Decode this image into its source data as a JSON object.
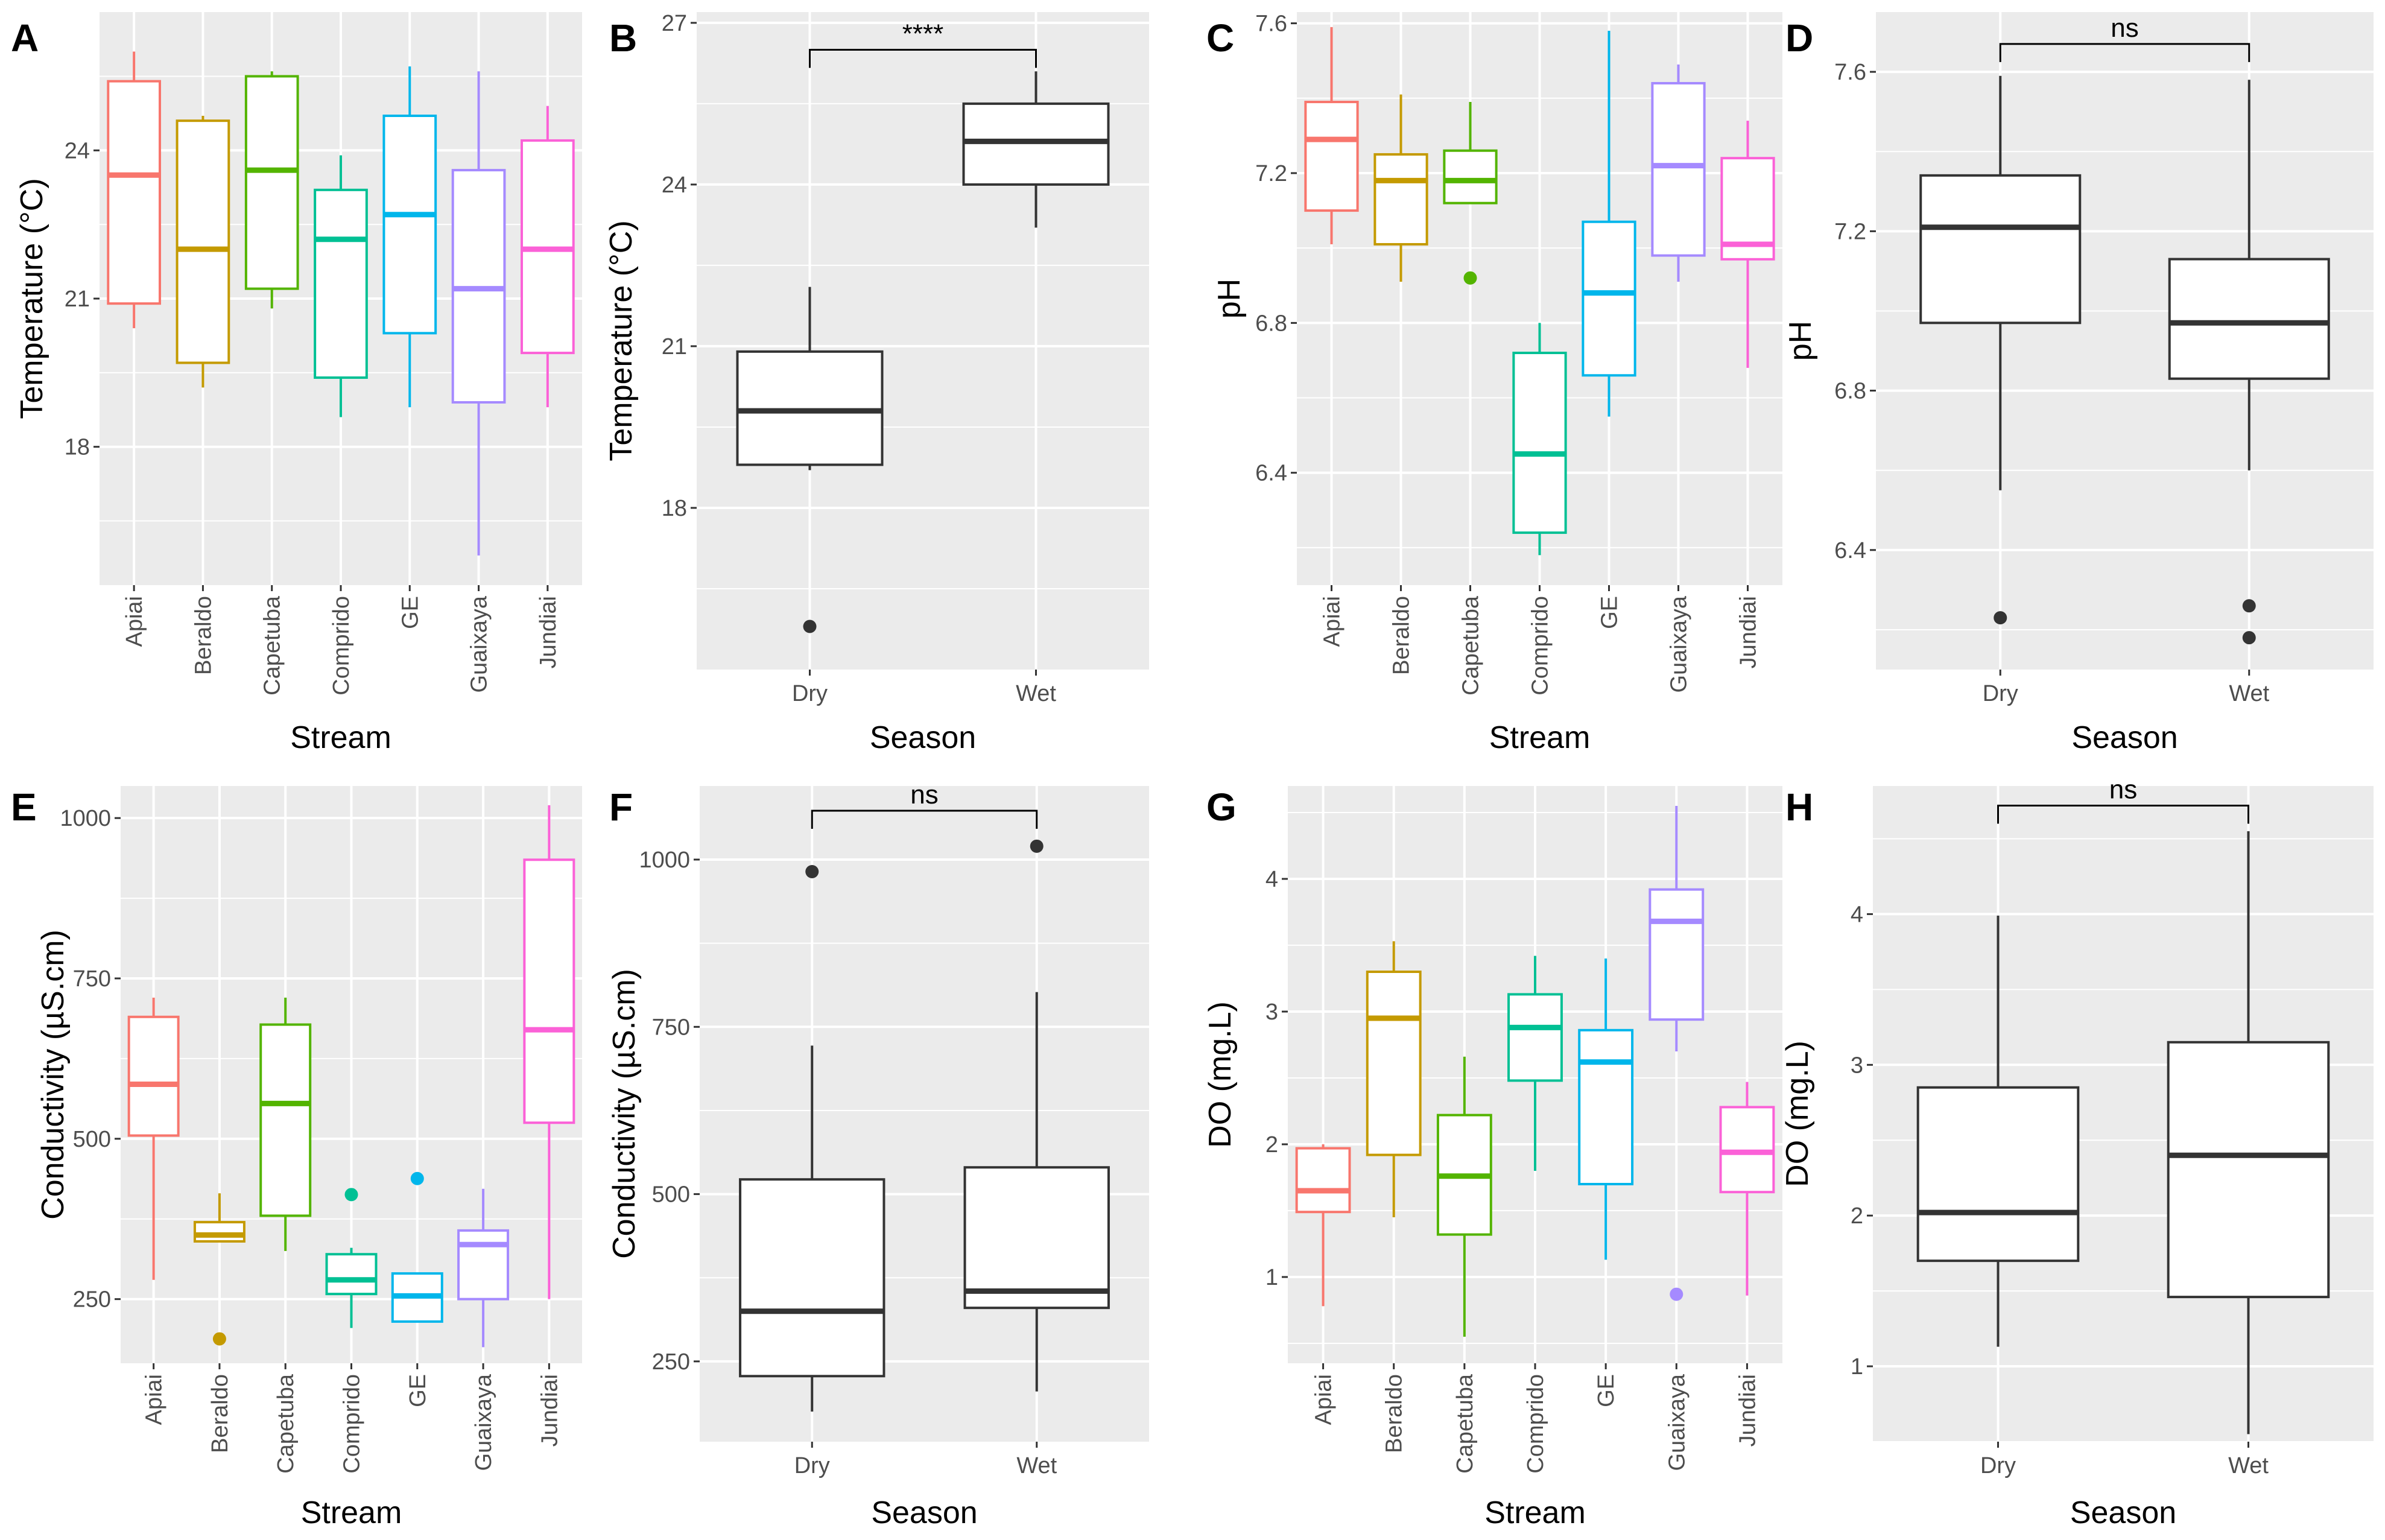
{
  "colors": {
    "panel_bg": "#ebebeb",
    "grid": "#ffffff",
    "box_default": "#333333",
    "streams": {
      "Apiai": "#f8766d",
      "Beraldo": "#c49a00",
      "Capetuba": "#53b400",
      "Comprido": "#00c094",
      "GE": "#00b6eb",
      "Guaixaya": "#a58aff",
      "Jundiai": "#fb61d7"
    }
  },
  "chart_data": [
    {
      "letter": "A",
      "type": "boxplot",
      "xlabel": "Stream",
      "ylabel": "Temperature (°C)",
      "ylim": [
        15.2,
        26.8
      ],
      "yticks": [
        18,
        21,
        24
      ],
      "rotate_x": true,
      "colored": true,
      "categories": [
        "Apiai",
        "Beraldo",
        "Capetuba",
        "Comprido",
        "GE",
        "Guaixaya",
        "Jundiai"
      ],
      "boxes": [
        {
          "whislo": 20.4,
          "q1": 20.9,
          "med": 23.5,
          "q3": 25.4,
          "whishi": 26.0,
          "outliers": []
        },
        {
          "whislo": 19.2,
          "q1": 19.7,
          "med": 22.0,
          "q3": 24.6,
          "whishi": 24.7,
          "outliers": []
        },
        {
          "whislo": 20.8,
          "q1": 21.2,
          "med": 23.6,
          "q3": 25.5,
          "whishi": 25.6,
          "outliers": []
        },
        {
          "whislo": 18.6,
          "q1": 19.4,
          "med": 22.2,
          "q3": 23.2,
          "whishi": 23.9,
          "outliers": []
        },
        {
          "whislo": 18.8,
          "q1": 20.3,
          "med": 22.7,
          "q3": 24.7,
          "whishi": 25.7,
          "outliers": []
        },
        {
          "whislo": 15.8,
          "q1": 18.9,
          "med": 21.2,
          "q3": 23.6,
          "whishi": 25.6,
          "outliers": []
        },
        {
          "whislo": 18.8,
          "q1": 19.9,
          "med": 22.0,
          "q3": 24.2,
          "whishi": 24.9,
          "outliers": []
        }
      ]
    },
    {
      "letter": "B",
      "type": "boxplot",
      "xlabel": "Season",
      "ylabel": "Temperature (°C)",
      "ylim": [
        15.0,
        27.2
      ],
      "yticks": [
        18,
        21,
        24,
        27
      ],
      "rotate_x": false,
      "colored": false,
      "categories": [
        "Dry",
        "Wet"
      ],
      "boxes": [
        {
          "whislo": 18.7,
          "q1": 18.8,
          "med": 19.8,
          "q3": 20.9,
          "whishi": 22.1,
          "outliers": [
            15.8
          ]
        },
        {
          "whislo": 23.2,
          "q1": 24.0,
          "med": 24.8,
          "q3": 25.5,
          "whishi": 26.1,
          "outliers": []
        }
      ],
      "significance": {
        "label": "****",
        "y": 26.5
      }
    },
    {
      "letter": "C",
      "type": "boxplot",
      "xlabel": "Stream",
      "ylabel": "pH",
      "ylim": [
        6.1,
        7.63
      ],
      "yticks": [
        6.4,
        6.8,
        7.2,
        7.6
      ],
      "rotate_x": true,
      "colored": true,
      "categories": [
        "Apiai",
        "Beraldo",
        "Capetuba",
        "Comprido",
        "GE",
        "Guaixaya",
        "Jundiai"
      ],
      "boxes": [
        {
          "whislo": 7.01,
          "q1": 7.1,
          "med": 7.29,
          "q3": 7.39,
          "whishi": 7.59,
          "outliers": []
        },
        {
          "whislo": 6.91,
          "q1": 7.01,
          "med": 7.18,
          "q3": 7.25,
          "whishi": 7.41,
          "outliers": []
        },
        {
          "whislo": 7.12,
          "q1": 7.12,
          "med": 7.18,
          "q3": 7.26,
          "whishi": 7.39,
          "outliers": [
            6.92
          ]
        },
        {
          "whislo": 6.18,
          "q1": 6.24,
          "med": 6.45,
          "q3": 6.72,
          "whishi": 6.8,
          "outliers": []
        },
        {
          "whislo": 6.55,
          "q1": 6.66,
          "med": 6.88,
          "q3": 7.07,
          "whishi": 7.58,
          "outliers": []
        },
        {
          "whislo": 6.91,
          "q1": 6.98,
          "med": 7.22,
          "q3": 7.44,
          "whishi": 7.49,
          "outliers": []
        },
        {
          "whislo": 6.68,
          "q1": 6.97,
          "med": 7.01,
          "q3": 7.24,
          "whishi": 7.34,
          "outliers": []
        }
      ]
    },
    {
      "letter": "D",
      "type": "boxplot",
      "xlabel": "Season",
      "ylabel": "pH",
      "ylim": [
        6.1,
        7.75
      ],
      "yticks": [
        6.4,
        6.8,
        7.2,
        7.6
      ],
      "rotate_x": false,
      "colored": false,
      "categories": [
        "Dry",
        "Wet"
      ],
      "boxes": [
        {
          "whislo": 6.55,
          "q1": 6.97,
          "med": 7.21,
          "q3": 7.34,
          "whishi": 7.59,
          "outliers": [
            6.23
          ]
        },
        {
          "whislo": 6.6,
          "q1": 6.83,
          "med": 6.97,
          "q3": 7.13,
          "whishi": 7.58,
          "outliers": [
            6.26,
            6.18
          ]
        }
      ],
      "significance": {
        "label": "ns",
        "y": 7.67
      }
    },
    {
      "letter": "E",
      "type": "boxplot",
      "xlabel": "Stream",
      "ylabel": "Conductivity (µS.cm)",
      "ylim": [
        150,
        1050
      ],
      "yticks": [
        250,
        500,
        750,
        1000
      ],
      "rotate_x": true,
      "colored": true,
      "categories": [
        "Apiai",
        "Beraldo",
        "Capetuba",
        "Comprido",
        "GE",
        "Guaixaya",
        "Jundiai"
      ],
      "boxes": [
        {
          "whislo": 280,
          "q1": 505,
          "med": 585,
          "q3": 690,
          "whishi": 720,
          "outliers": []
        },
        {
          "whislo": 340,
          "q1": 340,
          "med": 350,
          "q3": 370,
          "whishi": 415,
          "outliers": [
            188
          ]
        },
        {
          "whislo": 325,
          "q1": 380,
          "med": 555,
          "q3": 678,
          "whishi": 720,
          "outliers": []
        },
        {
          "whislo": 205,
          "q1": 258,
          "med": 280,
          "q3": 320,
          "whishi": 330,
          "outliers": [
            413
          ]
        },
        {
          "whislo": 215,
          "q1": 215,
          "med": 255,
          "q3": 290,
          "whishi": 290,
          "outliers": [
            438
          ]
        },
        {
          "whislo": 175,
          "q1": 250,
          "med": 335,
          "q3": 357,
          "whishi": 422,
          "outliers": []
        },
        {
          "whislo": 250,
          "q1": 525,
          "med": 670,
          "q3": 935,
          "whishi": 1020,
          "outliers": []
        }
      ]
    },
    {
      "letter": "F",
      "type": "boxplot",
      "xlabel": "Season",
      "ylabel": "Conductivity (µS.cm)",
      "ylim": [
        130,
        1110
      ],
      "yticks": [
        250,
        500,
        750,
        1000
      ],
      "rotate_x": false,
      "colored": false,
      "categories": [
        "Dry",
        "Wet"
      ],
      "boxes": [
        {
          "whislo": 175,
          "q1": 228,
          "med": 325,
          "q3": 522,
          "whishi": 722,
          "outliers": [
            982
          ]
        },
        {
          "whislo": 205,
          "q1": 330,
          "med": 355,
          "q3": 540,
          "whishi": 802,
          "outliers": [
            1020
          ]
        }
      ],
      "significance": {
        "label": "ns",
        "y": 1073
      }
    },
    {
      "letter": "G",
      "type": "boxplot",
      "xlabel": "Stream",
      "ylabel": "DO (mg.L)",
      "ylim": [
        0.35,
        4.7
      ],
      "yticks": [
        1,
        2,
        3,
        4
      ],
      "rotate_x": true,
      "colored": true,
      "categories": [
        "Apiai",
        "Beraldo",
        "Capetuba",
        "Comprido",
        "GE",
        "Guaixaya",
        "Jundiai"
      ],
      "boxes": [
        {
          "whislo": 0.78,
          "q1": 1.49,
          "med": 1.65,
          "q3": 1.97,
          "whishi": 2.0,
          "outliers": []
        },
        {
          "whislo": 1.45,
          "q1": 1.92,
          "med": 2.95,
          "q3": 3.3,
          "whishi": 3.53,
          "outliers": []
        },
        {
          "whislo": 0.55,
          "q1": 1.32,
          "med": 1.76,
          "q3": 2.22,
          "whishi": 2.66,
          "outliers": []
        },
        {
          "whislo": 1.8,
          "q1": 2.48,
          "med": 2.88,
          "q3": 3.13,
          "whishi": 3.42,
          "outliers": []
        },
        {
          "whislo": 1.13,
          "q1": 1.7,
          "med": 2.62,
          "q3": 2.86,
          "whishi": 3.4,
          "outliers": []
        },
        {
          "whislo": 2.7,
          "q1": 2.94,
          "med": 3.68,
          "q3": 3.92,
          "whishi": 4.55,
          "outliers": [
            0.87
          ]
        },
        {
          "whislo": 0.86,
          "q1": 1.64,
          "med": 1.94,
          "q3": 2.28,
          "whishi": 2.47,
          "outliers": []
        }
      ]
    },
    {
      "letter": "H",
      "type": "boxplot",
      "xlabel": "Season",
      "ylabel": "DO (mg.L)",
      "ylim": [
        0.5,
        4.85
      ],
      "yticks": [
        1,
        2,
        3,
        4
      ],
      "rotate_x": false,
      "colored": false,
      "categories": [
        "Dry",
        "Wet"
      ],
      "boxes": [
        {
          "whislo": 1.13,
          "q1": 1.7,
          "med": 2.02,
          "q3": 2.85,
          "whishi": 3.99,
          "outliers": []
        },
        {
          "whislo": 0.55,
          "q1": 1.46,
          "med": 2.4,
          "q3": 3.15,
          "whishi": 4.55,
          "outliers": []
        }
      ],
      "significance": {
        "label": "ns",
        "y": 4.72
      }
    }
  ]
}
